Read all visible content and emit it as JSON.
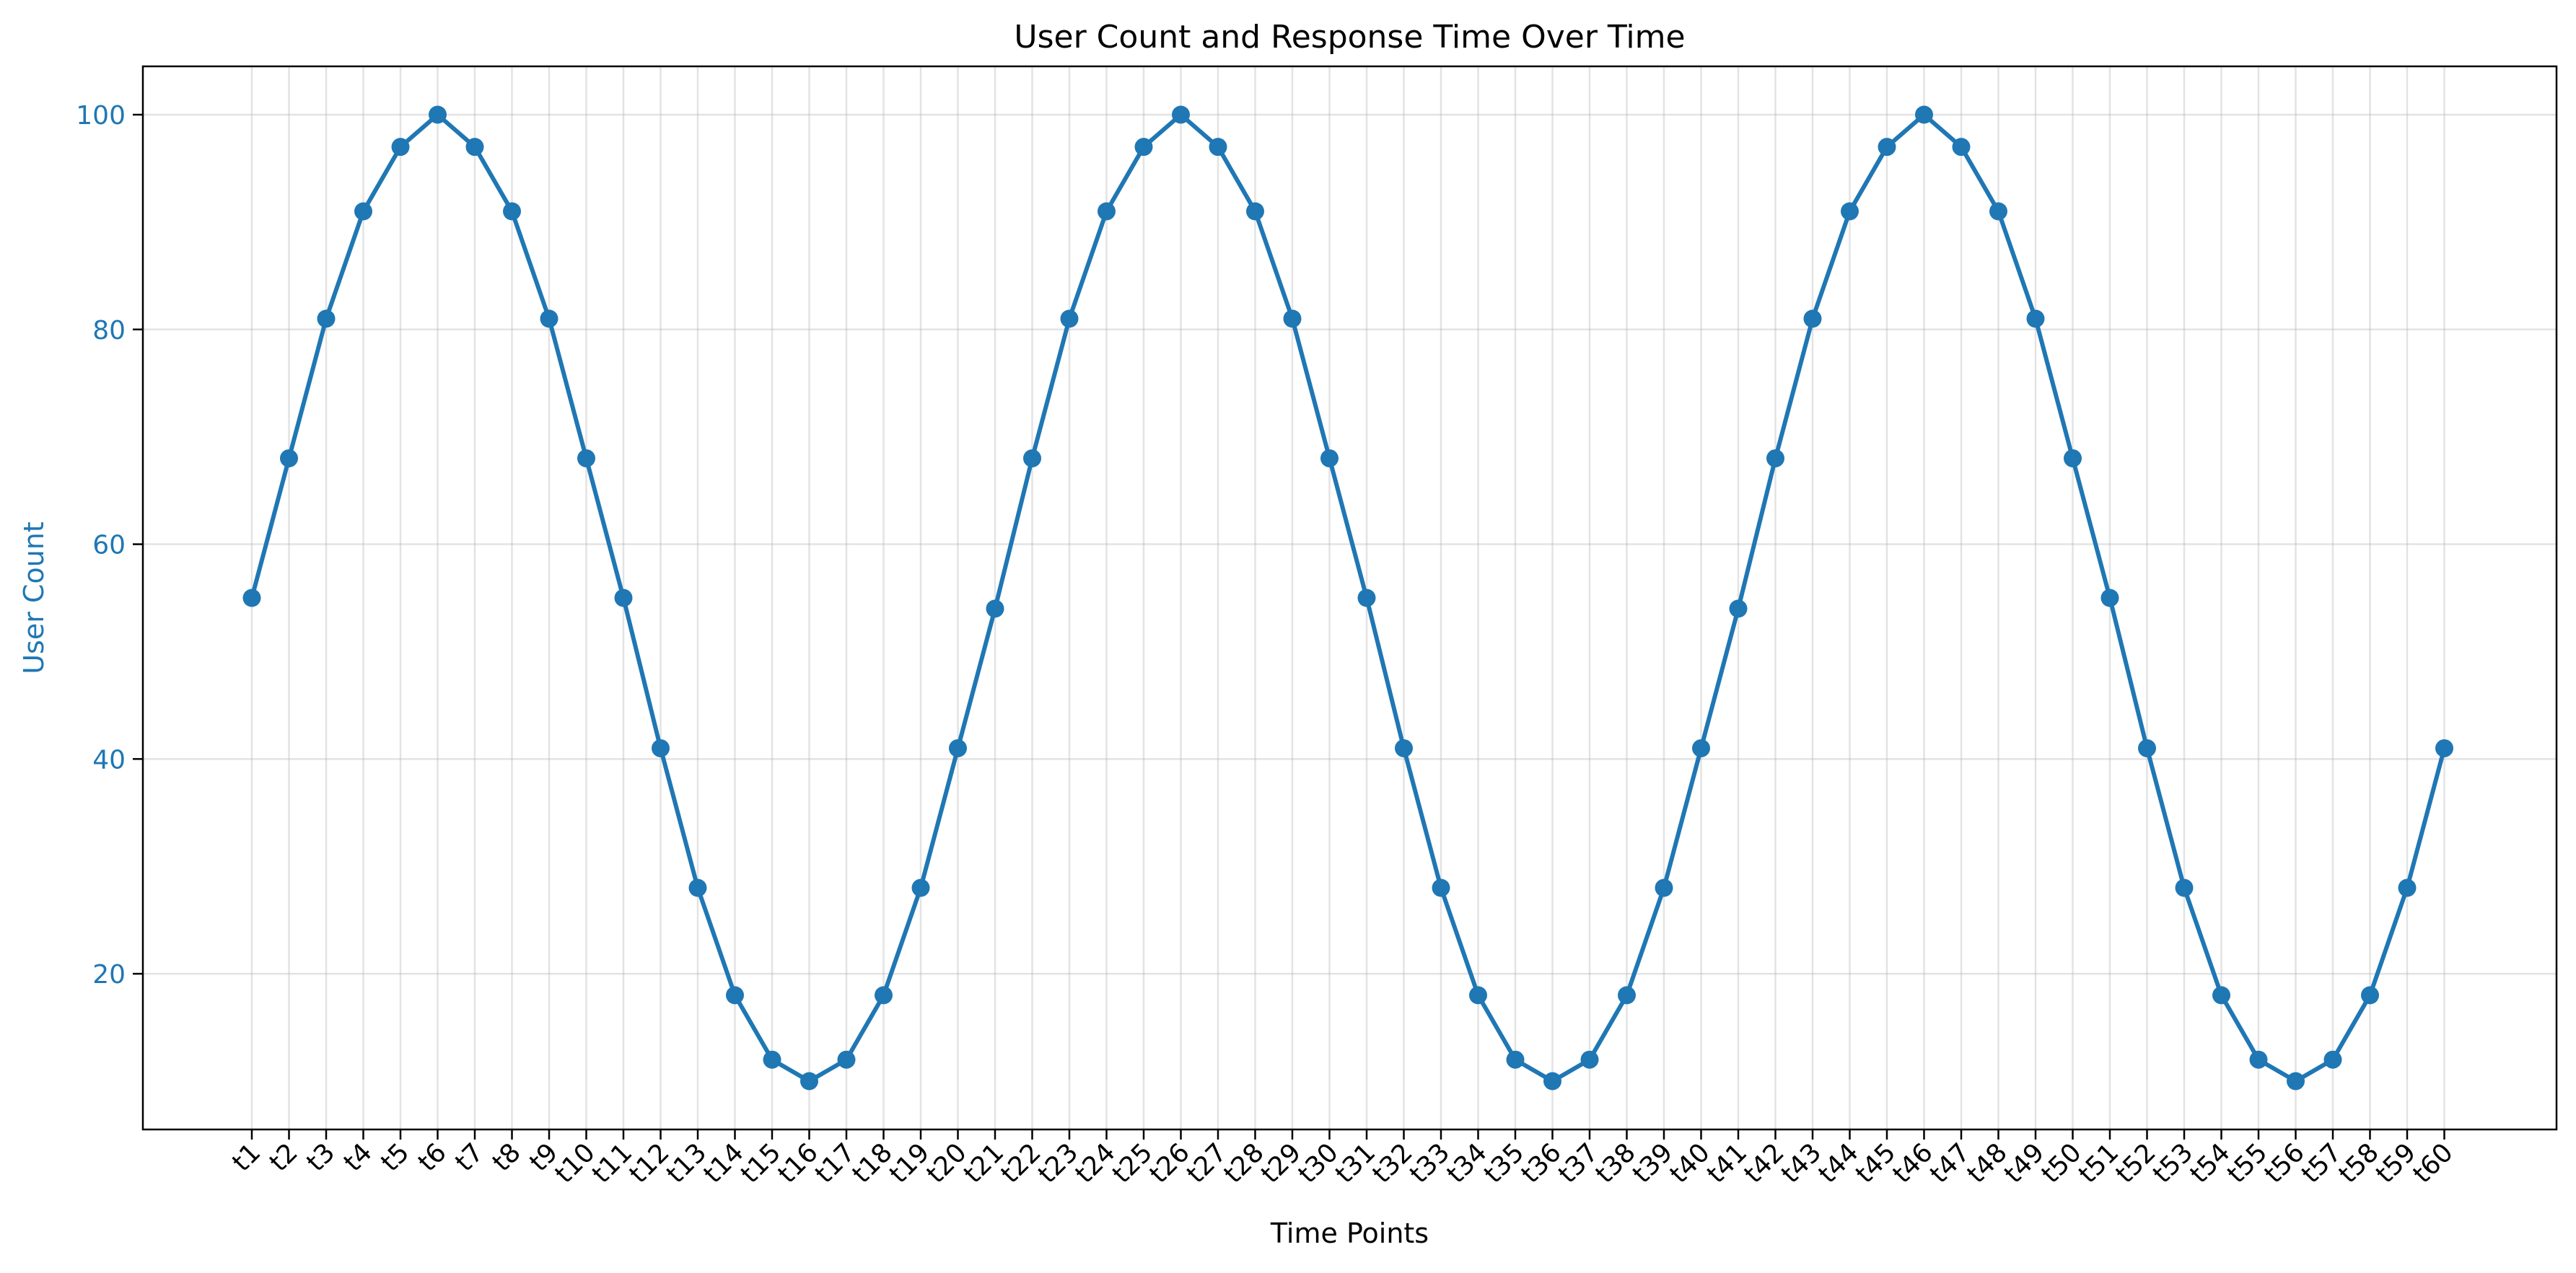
{
  "chart_data": {
    "type": "line",
    "title": "User Count and Response Time Over Time",
    "xlabel": "Time Points",
    "ylabel": "User Count",
    "categories": [
      "t1",
      "t2",
      "t3",
      "t4",
      "t5",
      "t6",
      "t7",
      "t8",
      "t9",
      "t10",
      "t11",
      "t12",
      "t13",
      "t14",
      "t15",
      "t16",
      "t17",
      "t18",
      "t19",
      "t20",
      "t21",
      "t22",
      "t23",
      "t24",
      "t25",
      "t26",
      "t27",
      "t28",
      "t29",
      "t30",
      "t31",
      "t32",
      "t33",
      "t34",
      "t35",
      "t36",
      "t37",
      "t38",
      "t39",
      "t40",
      "t41",
      "t42",
      "t43",
      "t44",
      "t45",
      "t46",
      "t47",
      "t48",
      "t49",
      "t50",
      "t51",
      "t52",
      "t53",
      "t54",
      "t55",
      "t56",
      "t57",
      "t58",
      "t59",
      "t60"
    ],
    "series": [
      {
        "values": [
          55,
          68,
          81,
          91,
          97,
          100,
          97,
          91,
          81,
          68,
          55,
          41,
          28,
          18,
          12,
          10,
          12,
          18,
          28,
          41,
          54,
          68,
          81,
          91,
          97,
          100,
          97,
          91,
          81,
          68,
          55,
          41,
          28,
          18,
          12,
          10,
          12,
          18,
          28,
          41,
          54,
          68,
          81,
          91,
          97,
          100,
          97,
          91,
          81,
          68,
          55,
          41,
          28,
          18,
          12,
          10,
          12,
          18,
          28,
          41
        ],
        "color": "#1f77b4",
        "marker": "circle"
      }
    ],
    "yticks": [
      20,
      40,
      60,
      80,
      100
    ],
    "ylim": [
      5.5,
      104.5
    ],
    "ylabel_color": "#1f77b4",
    "grid": true,
    "legend": "none"
  }
}
